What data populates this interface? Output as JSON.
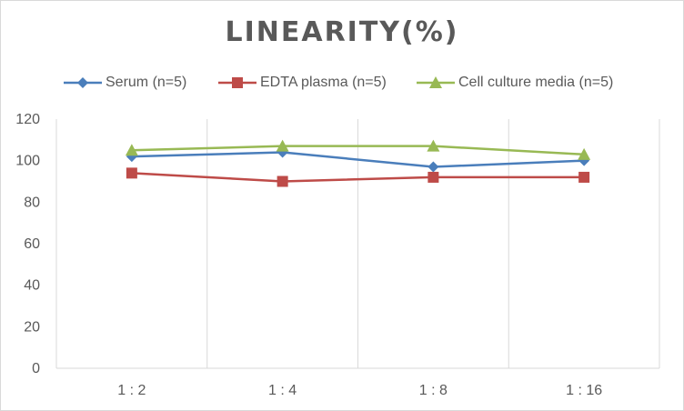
{
  "chart_data": {
    "type": "line",
    "title": "LINEARITY(%)",
    "xlabel": "",
    "ylabel": "",
    "categories": [
      "1:2",
      "1:4",
      "1:8",
      "1:16"
    ],
    "ylim": [
      0,
      120
    ],
    "yticks": [
      0,
      20,
      40,
      60,
      80,
      100,
      120
    ],
    "grid": "vertical",
    "legend_position": "top",
    "series": [
      {
        "name": "Serum (n=5)",
        "values": [
          102,
          104,
          97,
          100
        ],
        "color": "#4a7ebb",
        "marker": "diamond"
      },
      {
        "name": "EDTA plasma (n=5)",
        "values": [
          94,
          90,
          92,
          92
        ],
        "color": "#be4b48",
        "marker": "square"
      },
      {
        "name": "Cell culture media (n=5)",
        "values": [
          105,
          107,
          107,
          103
        ],
        "color": "#98b954",
        "marker": "triangle"
      }
    ]
  }
}
